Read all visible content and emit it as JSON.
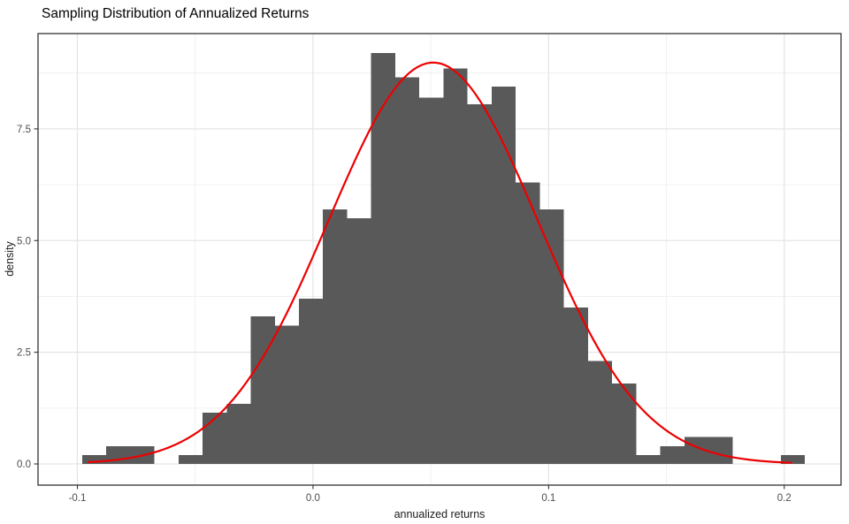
{
  "chart_data": {
    "type": "histogram",
    "title": "Sampling Distribution of Annualized Returns",
    "xlabel": "annualized returns",
    "ylabel": "density",
    "legend": "none",
    "grid": true,
    "x_tick_values": [
      -0.1,
      0.0,
      0.1,
      0.2
    ],
    "x_tick_labels": [
      "-0.1",
      "0.0",
      "0.1",
      "0.2"
    ],
    "x_minor_values": [
      -0.05,
      0.05,
      0.15
    ],
    "y_tick_values": [
      0.0,
      2.5,
      5.0,
      7.5
    ],
    "y_tick_labels": [
      "0.0",
      "2.5",
      "5.0",
      "7.5"
    ],
    "y_minor_values": [
      1.25,
      3.75,
      6.25,
      8.75
    ],
    "xlim": [
      -0.1167,
      0.2241
    ],
    "ylim": [
      0,
      9.63
    ],
    "bins": {
      "start": -0.098,
      "width": 0.010225,
      "heights": [
        0.2,
        0.4,
        0.4,
        0,
        0.2,
        1.15,
        1.35,
        3.3,
        3.1,
        3.7,
        5.7,
        5.5,
        9.2,
        8.65,
        8.2,
        8.85,
        8.05,
        8.45,
        6.3,
        5.7,
        3.5,
        2.3,
        1.8,
        0.2,
        0.4,
        0.6,
        0.6,
        0,
        0,
        0.2
      ]
    },
    "normal_curve": {
      "mean": 0.051,
      "sd": 0.0444,
      "peak_density": 8.98,
      "x_from": -0.0953,
      "x_to": 0.203
    },
    "colors": {
      "bar": "#595959",
      "curve": "#ED0000",
      "grid_major": "#E5E5E5",
      "grid_minor": "#F0F0F0",
      "panel_border": "#333333",
      "tick": "#333333",
      "axis_text": "#4D4D4D",
      "axis_title": "#1a1a1a",
      "title": "#000000",
      "background": "#FFFFFF"
    }
  }
}
